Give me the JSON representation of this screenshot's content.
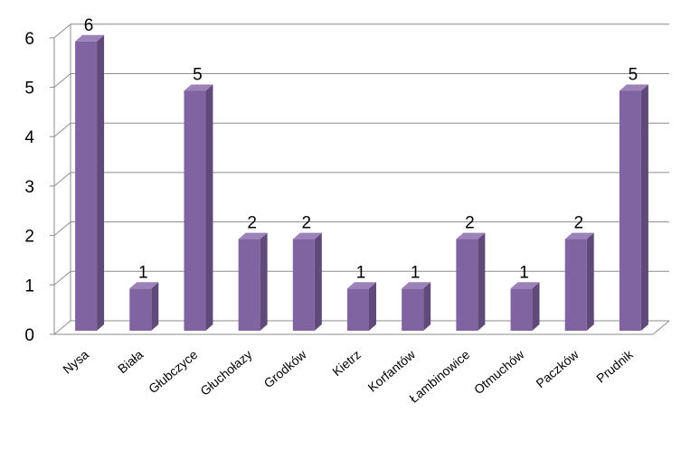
{
  "chart_data": {
    "type": "bar",
    "title": "",
    "xlabel": "",
    "ylabel": "",
    "categories": [
      "Nysa",
      "Biała",
      "Głubczyce",
      "Głuchołazy",
      "Grodków",
      "Kietrz",
      "Korfantów",
      "Łambinowice",
      "Otmuchów",
      "Paczków",
      "Prudnik"
    ],
    "values": [
      6,
      1,
      5,
      2,
      2,
      1,
      1,
      2,
      1,
      2,
      5
    ],
    "ylim": [
      0,
      6
    ],
    "yticks": [
      "0",
      "1",
      "2",
      "3",
      "4",
      "5",
      "6"
    ],
    "data_labels": [
      "6",
      "1",
      "5",
      "2",
      "2",
      "1",
      "1",
      "2",
      "1",
      "2",
      "5"
    ],
    "grid": true,
    "legend": "none",
    "style": "3d-column",
    "colors": {
      "bar_front": "#8064A2",
      "bar_side": "#5F4A7A",
      "bar_top": "#9B83BA",
      "grid": "#8C8C8C"
    }
  }
}
